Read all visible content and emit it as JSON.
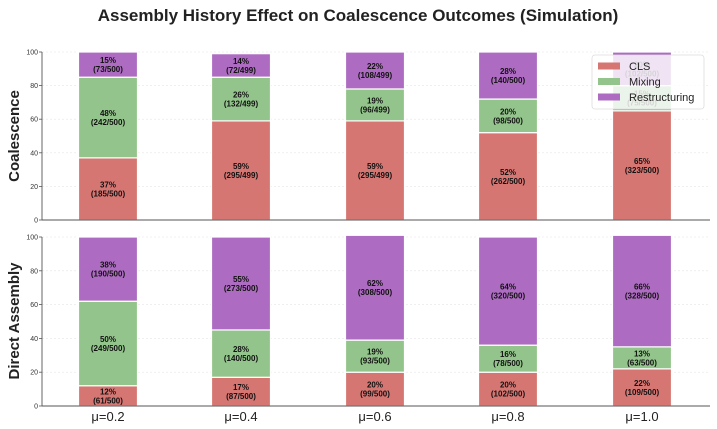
{
  "chart_data": {
    "type": "bar",
    "stacked": true,
    "title": "Assembly History Effect on Coalescence Outcomes (Simulation)",
    "categories": [
      "μ=0.2",
      "μ=0.4",
      "μ=0.6",
      "μ=0.8",
      "μ=1.0"
    ],
    "ylim": [
      0,
      100
    ],
    "yticks": [
      "0",
      "20",
      "40",
      "60",
      "80",
      "100"
    ],
    "grid": true,
    "legend": {
      "placement": "top-right",
      "panel": "Coalescence",
      "entries": [
        {
          "name": "CLS",
          "color": "#d67672"
        },
        {
          "name": "Mixing",
          "color": "#93c48b"
        },
        {
          "name": "Restructuring",
          "color": "#ad6cc1"
        }
      ]
    },
    "panels": [
      {
        "ylabel": "Coalescence",
        "series": [
          {
            "name": "CLS",
            "values": [
              37,
              59,
              59,
              52,
              65
            ],
            "counts": [
              "185/500",
              "295/499",
              "295/499",
              "262/500",
              "323/500"
            ]
          },
          {
            "name": "Mixing",
            "values": [
              48,
              26,
              19,
              20,
              15
            ],
            "counts": [
              "242/500",
              "132/499",
              "96/499",
              "98/500",
              "75/500"
            ]
          },
          {
            "name": "Restructuring",
            "values": [
              15,
              14,
              22,
              28,
              20
            ],
            "counts": [
              "73/500",
              "72/499",
              "108/499",
              "140/500",
              "102/500"
            ]
          }
        ]
      },
      {
        "ylabel": "Direct Assembly",
        "series": [
          {
            "name": "CLS",
            "values": [
              12,
              17,
              20,
              20,
              22
            ],
            "counts": [
              "61/500",
              "87/500",
              "99/500",
              "102/500",
              "109/500"
            ]
          },
          {
            "name": "Mixing",
            "values": [
              50,
              28,
              19,
              16,
              13
            ],
            "counts": [
              "249/500",
              "140/500",
              "93/500",
              "78/500",
              "63/500"
            ]
          },
          {
            "name": "Restructuring",
            "values": [
              38,
              55,
              62,
              64,
              66
            ],
            "counts": [
              "190/500",
              "273/500",
              "308/500",
              "320/500",
              "328/500"
            ]
          }
        ]
      }
    ]
  }
}
